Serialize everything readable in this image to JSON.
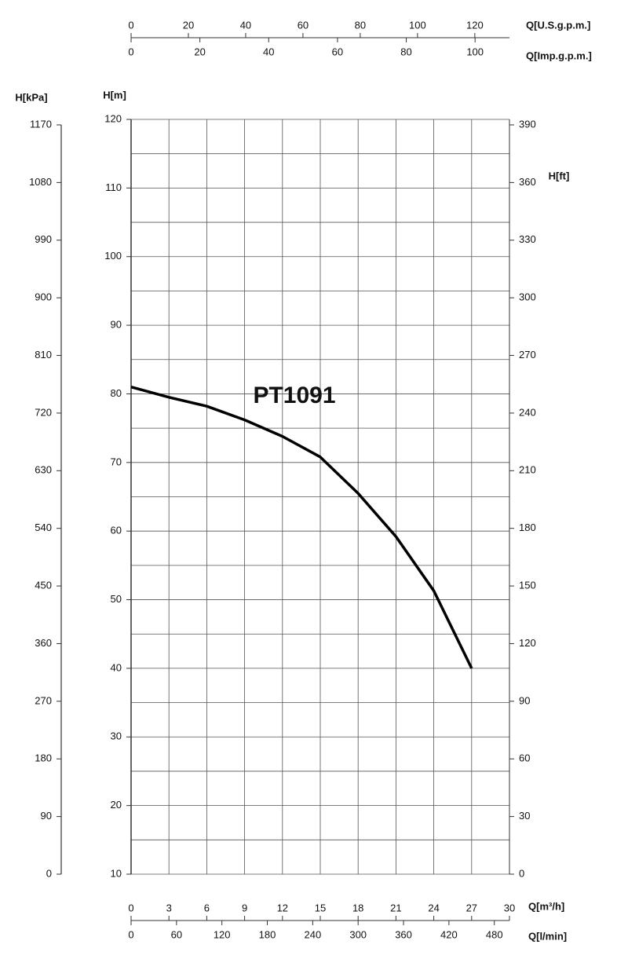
{
  "chart_data": {
    "type": "line",
    "x": [
      0,
      3,
      6,
      9,
      12,
      15,
      18,
      21,
      24,
      27
    ],
    "series": [
      {
        "name": "PT1091",
        "color": "#000000",
        "values": [
          81,
          79.5,
          78.2,
          76.2,
          73.8,
          70.8,
          65.5,
          59.2,
          51.3,
          40
        ]
      }
    ],
    "xlabel": "Q[m³/h]",
    "xlim": [
      0,
      30
    ],
    "xticks": [
      0,
      3,
      6,
      9,
      12,
      15,
      18,
      21,
      24,
      27,
      30
    ],
    "ylabel": "H[m]",
    "ylim": [
      10,
      120
    ],
    "yticks": [
      10,
      20,
      30,
      40,
      50,
      60,
      70,
      80,
      90,
      100,
      110,
      120
    ],
    "minor_grid_y": [
      15,
      25,
      35,
      45,
      55,
      65,
      75,
      85,
      95,
      105,
      115
    ],
    "grid": true,
    "y2label": "H[ft]",
    "y2lim": [
      0,
      390
    ],
    "y2ticks": [
      0,
      30,
      60,
      90,
      120,
      150,
      180,
      210,
      240,
      270,
      300,
      330,
      360,
      390
    ],
    "extra_axes": [
      {
        "side": "left-outer",
        "label": "H[kPa]",
        "lim": [
          0,
          1170
        ],
        "ticks": [
          0,
          90,
          180,
          270,
          360,
          450,
          540,
          630,
          720,
          810,
          900,
          990,
          1080,
          1170
        ]
      },
      {
        "side": "top-upper",
        "label": "Q[U.S.g.p.m.]",
        "lim": [
          0,
          132.1
        ],
        "ticks": [
          0,
          20,
          40,
          60,
          80,
          100,
          120
        ]
      },
      {
        "side": "top-lower",
        "label": "Q[Imp.g.p.m.]",
        "lim": [
          0,
          110
        ],
        "ticks": [
          0,
          20,
          40,
          60,
          80,
          100
        ]
      },
      {
        "side": "bottom-lower",
        "label": "Q[l/min]",
        "lim": [
          0,
          500
        ],
        "ticks": [
          0,
          60,
          120,
          180,
          240,
          300,
          360,
          420,
          480
        ]
      }
    ]
  }
}
